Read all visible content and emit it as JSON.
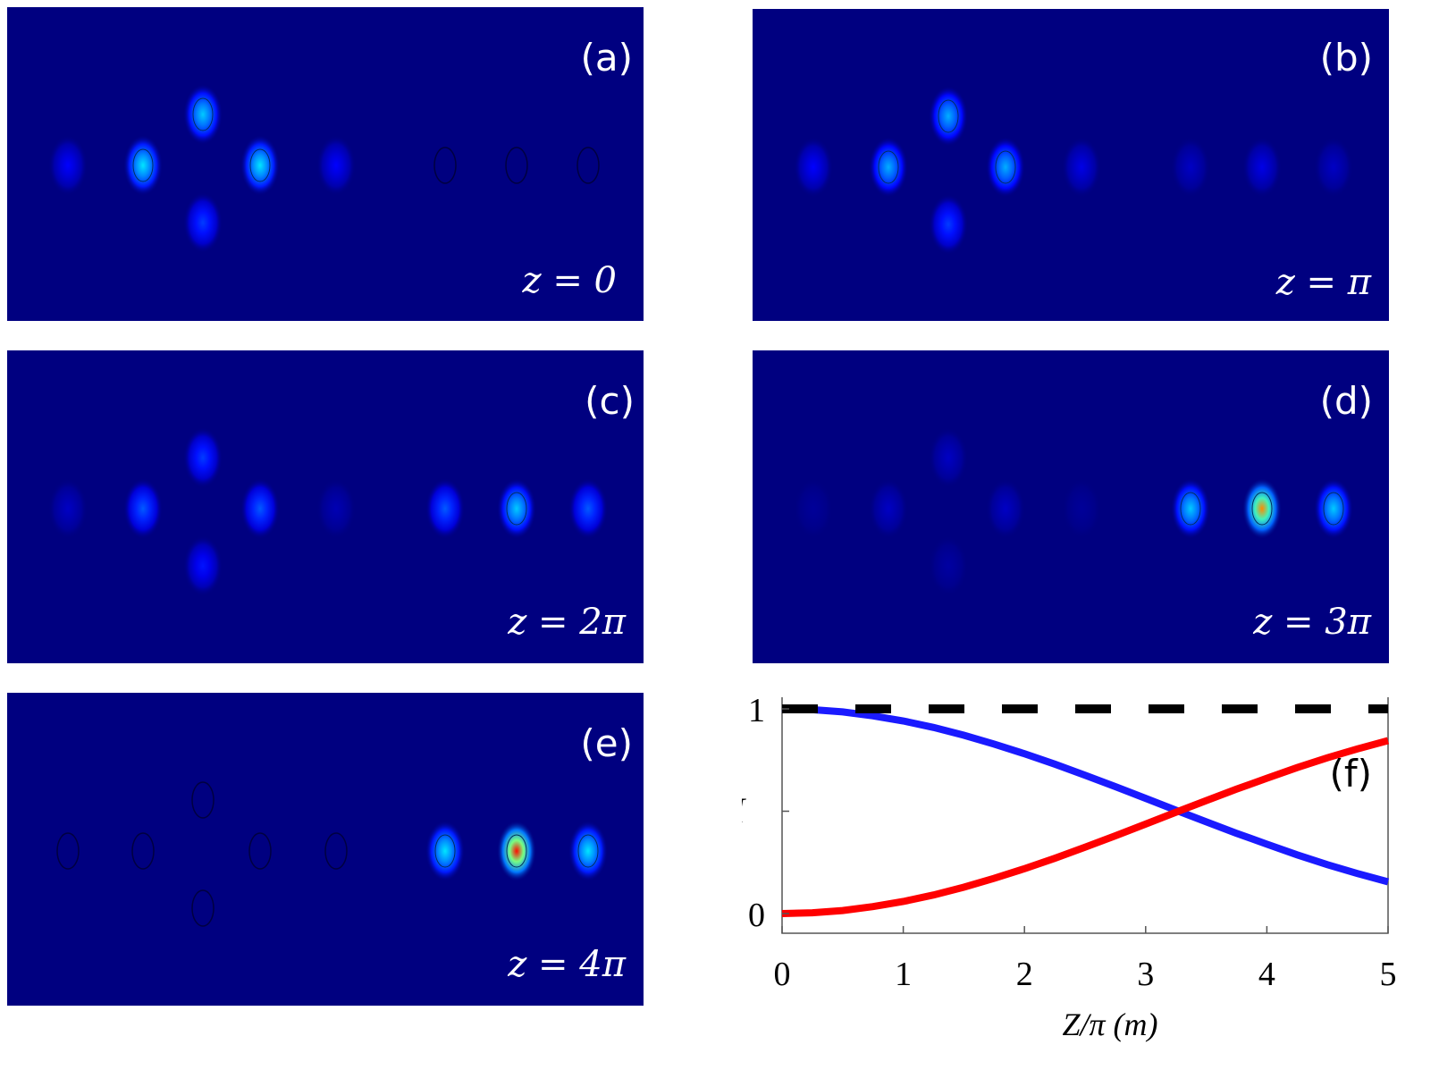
{
  "colors": {
    "background": "#000080",
    "spot_weak": "#1f3fff",
    "spot_mid": "#00d0ff",
    "spot_strong": "#ff2000",
    "curve_blue": "#1a1aff",
    "curve_red": "#ff0000",
    "dashed": "#000000"
  },
  "panels": [
    {
      "label": "(a)",
      "z_label": "z = 0",
      "spots": [
        {
          "id": "L1",
          "level": 0.15
        },
        {
          "id": "L2",
          "level": 0.55
        },
        {
          "id": "TOP",
          "level": 0.5
        },
        {
          "id": "BOT",
          "level": 0.25
        },
        {
          "id": "L3",
          "level": 0.55
        },
        {
          "id": "L4",
          "level": 0.15
        },
        {
          "id": "R1",
          "level": 0.0
        },
        {
          "id": "R2",
          "level": 0.0
        },
        {
          "id": "R3",
          "level": 0.0
        }
      ]
    },
    {
      "label": "(b)",
      "z_label": "z =  π",
      "spots": [
        {
          "id": "L1",
          "level": 0.15
        },
        {
          "id": "L2",
          "level": 0.45
        },
        {
          "id": "TOP",
          "level": 0.45
        },
        {
          "id": "BOT",
          "level": 0.25
        },
        {
          "id": "L3",
          "level": 0.45
        },
        {
          "id": "L4",
          "level": 0.12
        },
        {
          "id": "R1",
          "level": 0.08
        },
        {
          "id": "R2",
          "level": 0.12
        },
        {
          "id": "R3",
          "level": 0.08
        }
      ]
    },
    {
      "label": "(c)",
      "z_label": "z = 2π",
      "spots": [
        {
          "id": "L1",
          "level": 0.08
        },
        {
          "id": "L2",
          "level": 0.3
        },
        {
          "id": "TOP",
          "level": 0.25
        },
        {
          "id": "BOT",
          "level": 0.18
        },
        {
          "id": "L3",
          "level": 0.3
        },
        {
          "id": "L4",
          "level": 0.06
        },
        {
          "id": "R1",
          "level": 0.3
        },
        {
          "id": "R2",
          "level": 0.5
        },
        {
          "id": "R3",
          "level": 0.3
        }
      ]
    },
    {
      "label": "(d)",
      "z_label": "z = 3π",
      "spots": [
        {
          "id": "L1",
          "level": 0.03
        },
        {
          "id": "L2",
          "level": 0.08
        },
        {
          "id": "TOP",
          "level": 0.08
        },
        {
          "id": "BOT",
          "level": 0.04
        },
        {
          "id": "L3",
          "level": 0.08
        },
        {
          "id": "L4",
          "level": 0.03
        },
        {
          "id": "R1",
          "level": 0.5
        },
        {
          "id": "R2",
          "level": 0.9
        },
        {
          "id": "R3",
          "level": 0.5
        }
      ]
    },
    {
      "label": "(e)",
      "z_label": "z = 4π",
      "spots": [
        {
          "id": "L1",
          "level": 0.0
        },
        {
          "id": "L2",
          "level": 0.0
        },
        {
          "id": "TOP",
          "level": 0.0
        },
        {
          "id": "BOT",
          "level": 0.0
        },
        {
          "id": "L3",
          "level": 0.0
        },
        {
          "id": "L4",
          "level": 0.0
        },
        {
          "id": "R1",
          "level": 0.55
        },
        {
          "id": "R2",
          "level": 1.0
        },
        {
          "id": "R3",
          "level": 0.55
        }
      ]
    }
  ],
  "chart_data": {
    "type": "line",
    "panel_label": "(f)",
    "xlabel": "Z/π (m)",
    "ylabel": "I",
    "xlim": [
      0,
      5
    ],
    "ylim": [
      0,
      1
    ],
    "xticks": [
      "0",
      "1",
      "2",
      "3",
      "4",
      "5"
    ],
    "yticks": [
      "0",
      "1"
    ],
    "series": [
      {
        "color": "#1a1aff",
        "style": "solid",
        "x": [
          0,
          0.25,
          0.5,
          0.75,
          1,
          1.25,
          1.5,
          1.75,
          2,
          2.25,
          2.5,
          2.75,
          3,
          3.25,
          3.5,
          3.75,
          4,
          4.25,
          4.5,
          4.75,
          5
        ],
        "values": [
          1.0,
          0.996,
          0.985,
          0.966,
          0.941,
          0.909,
          0.871,
          0.828,
          0.781,
          0.73,
          0.676,
          0.62,
          0.563,
          0.505,
          0.448,
          0.392,
          0.339,
          0.287,
          0.239,
          0.195,
          0.155
        ]
      },
      {
        "color": "#ff0000",
        "style": "solid",
        "x": [
          0,
          0.25,
          0.5,
          0.75,
          1,
          1.25,
          1.5,
          1.75,
          2,
          2.25,
          2.5,
          2.75,
          3,
          3.25,
          3.5,
          3.75,
          4,
          4.25,
          4.5,
          4.75,
          5
        ],
        "values": [
          0.0,
          0.004,
          0.015,
          0.034,
          0.059,
          0.091,
          0.129,
          0.172,
          0.219,
          0.27,
          0.324,
          0.38,
          0.437,
          0.495,
          0.552,
          0.608,
          0.661,
          0.713,
          0.761,
          0.805,
          0.845
        ]
      },
      {
        "color": "#000000",
        "style": "dashed",
        "x": [
          0,
          5
        ],
        "values": [
          1,
          1
        ]
      }
    ]
  }
}
